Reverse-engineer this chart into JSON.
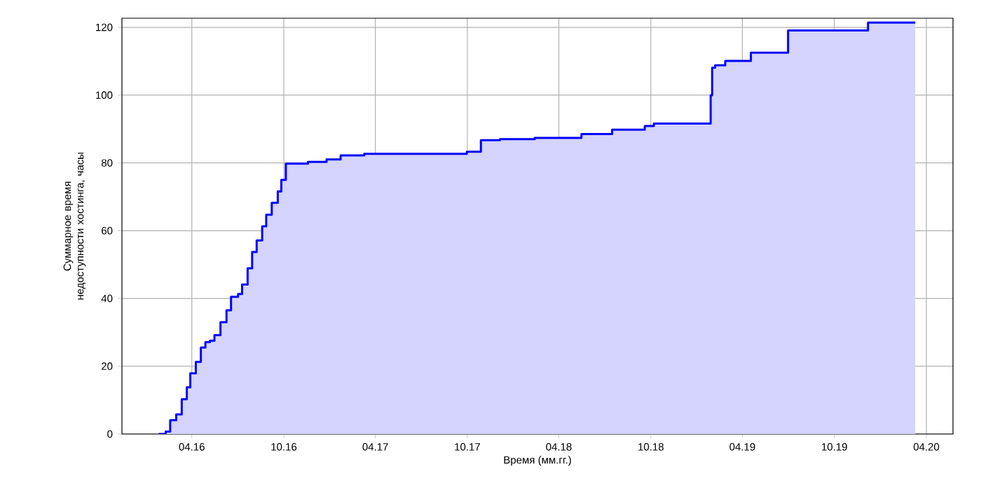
{
  "chart_data": {
    "type": "area",
    "xlabel": "Время (мм.гг.)",
    "ylabel": "Суммарное время недоступности хостинга, часы",
    "xlim": [
      "2015-11-14",
      "2020-05-24"
    ],
    "ylim": [
      0,
      122.7
    ],
    "xticks": [
      {
        "value": "2016-04-01",
        "label": "04.16"
      },
      {
        "value": "2016-10-01",
        "label": "10.16"
      },
      {
        "value": "2017-04-01",
        "label": "04.17"
      },
      {
        "value": "2017-10-01",
        "label": "10.17"
      },
      {
        "value": "2018-04-01",
        "label": "04.18"
      },
      {
        "value": "2018-10-01",
        "label": "10.18"
      },
      {
        "value": "2019-04-01",
        "label": "04.19"
      },
      {
        "value": "2019-10-01",
        "label": "10.19"
      },
      {
        "value": "2020-04-01",
        "label": "04.20"
      }
    ],
    "yticks": [
      0,
      20,
      40,
      60,
      80,
      100,
      120
    ],
    "grid": true,
    "series": [
      {
        "type": "step",
        "color": "#0000ff",
        "x": [
          "2016-01-26",
          "2016-02-09",
          "2016-02-18",
          "2016-03-01",
          "2016-03-12",
          "2016-03-22",
          "2016-03-29",
          "2016-04-09",
          "2016-04-19",
          "2016-04-28",
          "2016-05-07",
          "2016-05-16",
          "2016-05-28",
          "2016-06-09",
          "2016-06-18",
          "2016-07-02",
          "2016-07-10",
          "2016-07-21",
          "2016-07-30",
          "2016-08-08",
          "2016-08-19",
          "2016-08-27",
          "2016-09-07",
          "2016-09-19",
          "2016-09-26",
          "2016-10-05",
          "2016-11-18",
          "2016-12-25",
          "2017-01-22",
          "2017-03-10",
          "2017-09-30",
          "2017-10-28",
          "2017-12-05",
          "2018-02-12",
          "2018-05-16",
          "2018-07-16",
          "2018-09-19",
          "2018-10-07",
          "2019-01-28",
          "2019-01-31",
          "2019-02-06",
          "2019-02-26",
          "2019-04-18",
          "2019-07-01",
          "2019-12-07",
          "2020-03-10"
        ],
        "values": [
          0,
          0.7,
          4.1,
          5.8,
          10.3,
          13.8,
          17.9,
          21.3,
          25.5,
          27.1,
          27.5,
          29.2,
          33.0,
          36.5,
          40.5,
          41.3,
          44.1,
          48.9,
          53.7,
          57.1,
          61.3,
          64.7,
          68.2,
          71.6,
          75.0,
          79.8,
          80.3,
          81.0,
          82.2,
          82.7,
          83.3,
          86.7,
          87.0,
          87.4,
          88.5,
          89.8,
          90.9,
          91.6,
          100,
          108.1,
          108.8,
          110.1,
          112.5,
          119.1,
          121.4,
          121.4
        ]
      }
    ]
  }
}
